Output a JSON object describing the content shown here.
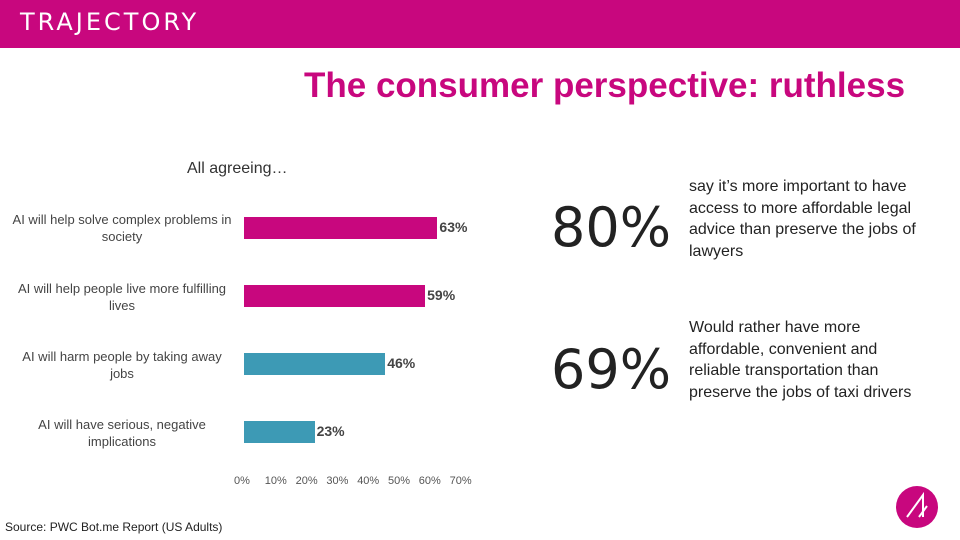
{
  "header": {
    "logo_text": "TRAJECTORY",
    "bg_color": "#c8077e"
  },
  "title": "The consumer perspective: ruthless",
  "chart_data": {
    "type": "bar",
    "orientation": "horizontal",
    "title": "All agreeing…",
    "categories": [
      "AI will help solve complex problems in society",
      "AI will help people live more fulfilling lives",
      "AI will harm people by taking away jobs",
      "AI will have serious, negative implications"
    ],
    "values": [
      63,
      59,
      46,
      23
    ],
    "value_labels": [
      "63%",
      "59%",
      "46%",
      "23%"
    ],
    "colors": [
      "#c8077e",
      "#c8077e",
      "#3d9ab5",
      "#3d9ab5"
    ],
    "xlim": [
      0,
      70
    ],
    "x_ticks": [
      "0%",
      "10%",
      "20%",
      "30%",
      "40%",
      "50%",
      "60%",
      "70%"
    ],
    "grid": false
  },
  "stats": [
    {
      "value": "80%",
      "text": "say it’s more important to have access to more affordable legal advice than preserve the jobs of lawyers"
    },
    {
      "value": "69%",
      "text": "Would rather have more affordable, convenient and reliable transportation than preserve the jobs of taxi drivers"
    }
  ],
  "source": "Source: PWC Bot.me Report (US Adults)"
}
